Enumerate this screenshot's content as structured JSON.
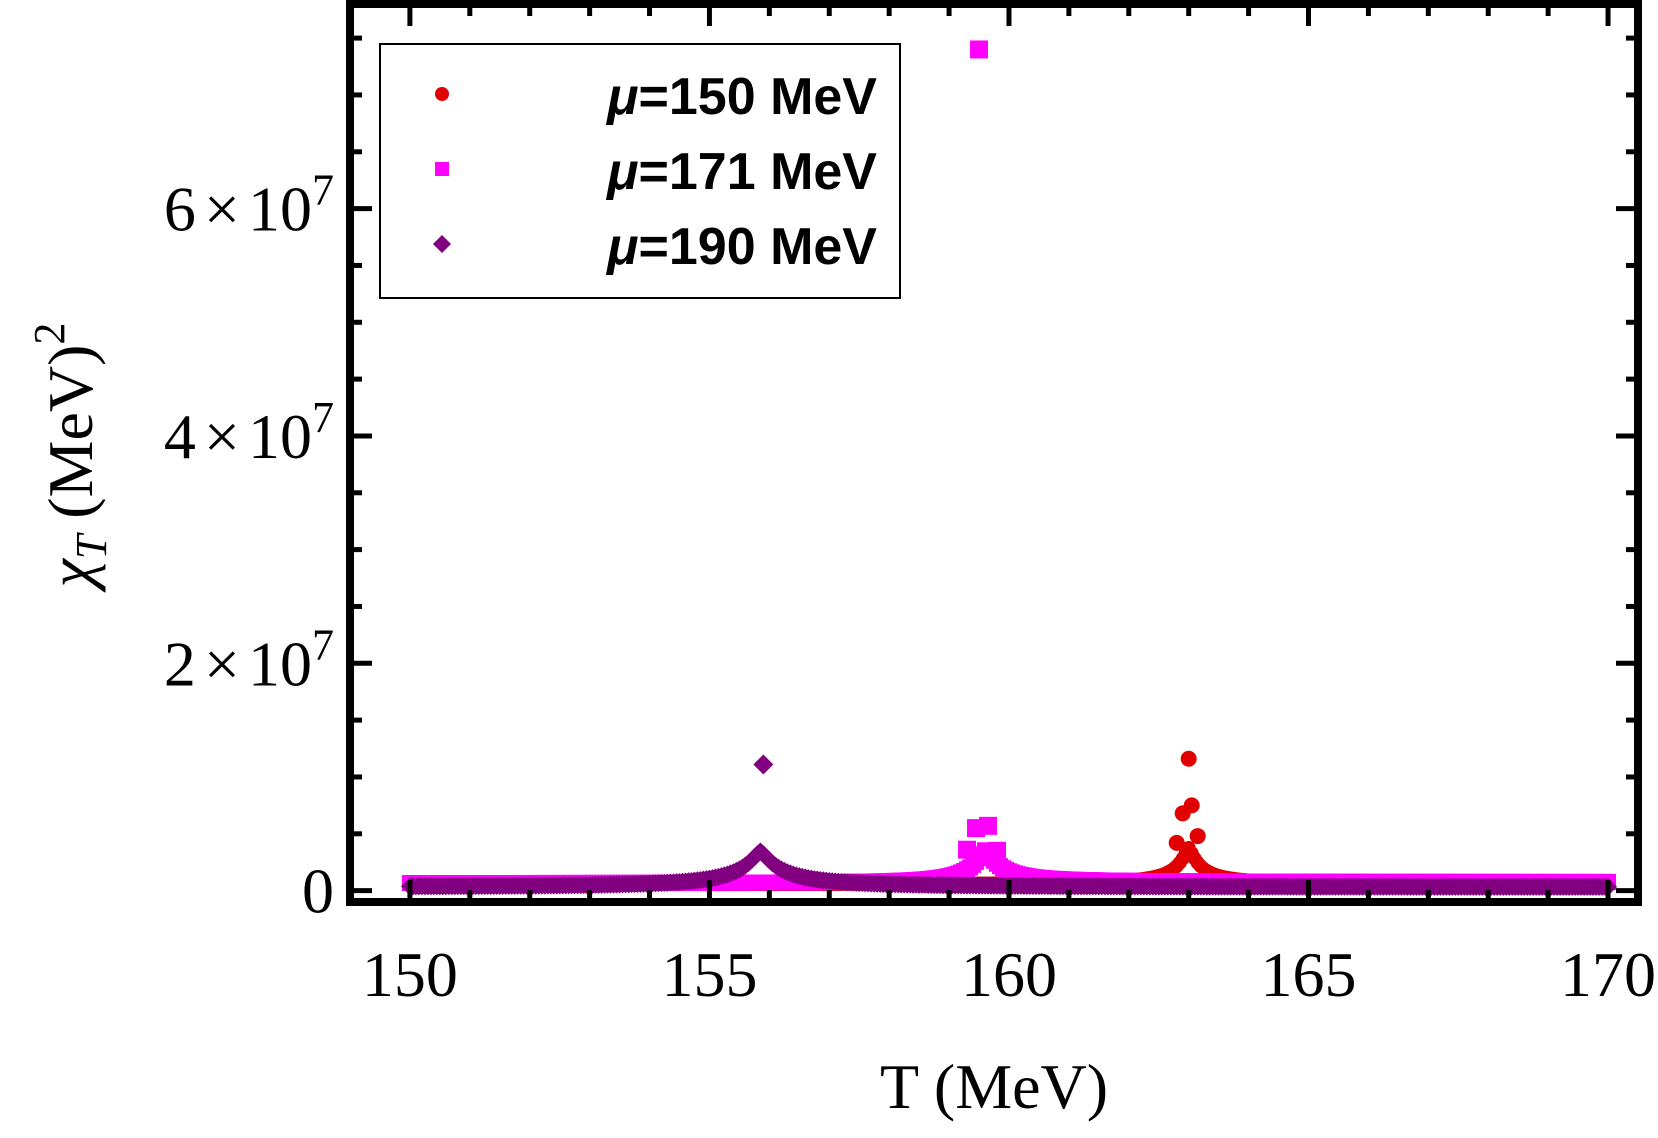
{
  "chart_data": {
    "type": "scatter",
    "xlabel": "T (MeV)",
    "ylabel": {
      "symbol": "χ",
      "subscript": "T",
      "units": " (MeV)",
      "exponent": "2"
    },
    "xlim": [
      149,
      170.5
    ],
    "ylim": [
      -1000000,
      78000000
    ],
    "x_ticks": [
      150,
      155,
      160,
      165,
      170
    ],
    "x_tick_labels": [
      "150",
      "155",
      "160",
      "165",
      "170"
    ],
    "y_ticks": [
      0,
      20000000,
      40000000,
      60000000
    ],
    "y_tick_labels": [
      {
        "mantissa": "0",
        "times": "",
        "base": "",
        "exp": ""
      },
      {
        "mantissa": "2",
        "times": "×",
        "base": "10",
        "exp": "7"
      },
      {
        "mantissa": "4",
        "times": "×",
        "base": "10",
        "exp": "7"
      },
      {
        "mantissa": "6",
        "times": "×",
        "base": "10",
        "exp": "7"
      }
    ],
    "legend_position": "top-left",
    "series": [
      {
        "name": "μ=150 MeV",
        "mu_symbol": "μ",
        "label_rest": "=150 MeV",
        "color": "#e00000",
        "marker": "circle",
        "peak_x": 163.0,
        "peak_y": 500000,
        "peak_points": [
          {
            "x": 163.0,
            "y": 11600000
          },
          {
            "x": 163.05,
            "y": 7500000
          },
          {
            "x": 162.9,
            "y": 6800000
          },
          {
            "x": 163.15,
            "y": 4800000
          },
          {
            "x": 162.8,
            "y": 4200000
          }
        ]
      },
      {
        "name": "μ=171 MeV",
        "mu_symbol": "μ",
        "label_rest": "=171 MeV",
        "color": "#ff00ff",
        "marker": "square",
        "peak_x": 159.6,
        "peak_y": 500000,
        "peak_points": [
          {
            "x": 159.5,
            "y": 74000000
          },
          {
            "x": 159.45,
            "y": 5500000
          },
          {
            "x": 159.65,
            "y": 5700000
          },
          {
            "x": 159.3,
            "y": 3600000
          },
          {
            "x": 159.8,
            "y": 3500000
          }
        ]
      },
      {
        "name": "μ=190 MeV",
        "mu_symbol": "μ",
        "label_rest": "=190 MeV",
        "color": "#800080",
        "marker": "diamond",
        "peak_x": 155.85,
        "peak_y": 3700000,
        "peak_points": [
          {
            "x": 155.9,
            "y": 11100000
          }
        ]
      }
    ]
  }
}
